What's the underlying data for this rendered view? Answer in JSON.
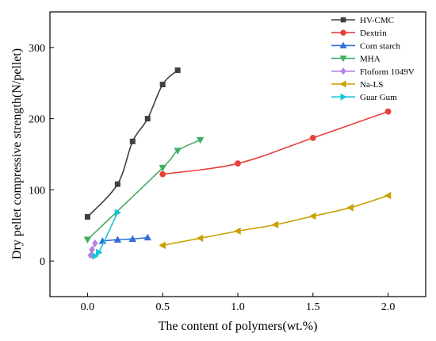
{
  "chart_data": {
    "type": "line",
    "title": "",
    "xlabel": "The content of polymers(wt.%)",
    "ylabel": "Dry pellet compressive strength(N/pellet)",
    "xlim": [
      -0.25,
      2.25
    ],
    "ylim": [
      -50,
      350
    ],
    "xticks": [
      0.0,
      0.5,
      1.0,
      1.5,
      2.0
    ],
    "xtick_labels": [
      "0.0",
      "0.5",
      "1.0",
      "1.5",
      "2.0"
    ],
    "yticks": [
      0,
      100,
      200,
      300
    ],
    "ytick_labels": [
      "0",
      "100",
      "200",
      "300"
    ],
    "grid": false,
    "legend_position": "top-right",
    "series": [
      {
        "name": "HV-CMC",
        "color": "#404040",
        "marker": "square",
        "x": [
          0.0,
          0.2,
          0.3,
          0.4,
          0.5,
          0.6
        ],
        "y": [
          62,
          108,
          168,
          200,
          248,
          268
        ]
      },
      {
        "name": "Dextrin",
        "color": "#e8403a",
        "marker": "circle",
        "x": [
          0.5,
          1.0,
          1.5,
          2.0
        ],
        "y": [
          122,
          137,
          173,
          210
        ]
      },
      {
        "name": "Corn starch",
        "color": "#2f6fd6",
        "marker": "triangle-up",
        "x": [
          0.1,
          0.2,
          0.3,
          0.4
        ],
        "y": [
          28,
          30,
          31,
          33
        ]
      },
      {
        "name": "MHA",
        "color": "#3fae63",
        "marker": "triangle-down",
        "x": [
          0.0,
          0.5,
          0.6,
          0.75
        ],
        "y": [
          30,
          131,
          155,
          170
        ]
      },
      {
        "name": "Floform 1049V",
        "color": "#b77de0",
        "marker": "diamond",
        "x": [
          0.02,
          0.03,
          0.05
        ],
        "y": [
          8,
          16,
          25
        ]
      },
      {
        "name": "Na-LS",
        "color": "#c9a000",
        "marker": "triangle-left",
        "x": [
          0.5,
          0.75,
          1.0,
          1.25,
          1.5,
          1.75,
          2.0
        ],
        "y": [
          22,
          32,
          42,
          51,
          63,
          75,
          92
        ]
      },
      {
        "name": "Guar Gum",
        "color": "#17c4d4",
        "marker": "triangle-right",
        "x": [
          0.05,
          0.075,
          0.2
        ],
        "y": [
          7,
          12,
          68
        ]
      }
    ]
  }
}
